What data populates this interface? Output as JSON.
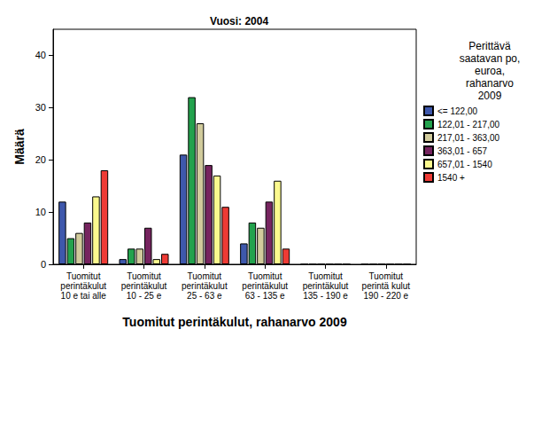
{
  "chart_data": {
    "type": "bar",
    "title": "Vuosi: 2004",
    "x_label": "Tuomitut perintäkulut, rahanarvo 2009",
    "y_label": "Määrä",
    "legend_title": "Perittävä\nsaatavan po,\neuroa,\nrahanarvo\n2009",
    "categories": [
      "Tuomitut\nperintäkulut\n10 e tai alle",
      "Tuomitut\nperintäkulut\n10 - 25 e",
      "Tuomitut\nperintäkulut\n25 - 63 e",
      "Tuomitut\nperintäkulut\n63 - 135 e",
      "Tuomitut\nperintäkulut\n135 - 190 e",
      "Tuomitut\nperintä kulut\n190 - 220 e"
    ],
    "series": [
      {
        "name": "<= 122,00",
        "color": "#3e58ac",
        "values": [
          12,
          1,
          21,
          4,
          0,
          0
        ]
      },
      {
        "name": "122,01 - 217,00",
        "color": "#23a24d",
        "values": [
          5,
          3,
          32,
          8,
          0,
          0
        ]
      },
      {
        "name": "217,01 - 363,00",
        "color": "#d1cb9c",
        "values": [
          6,
          3,
          27,
          7,
          0,
          0
        ]
      },
      {
        "name": "363,01 - 657",
        "color": "#76245f",
        "values": [
          8,
          7,
          19,
          12,
          0,
          0
        ]
      },
      {
        "name": "657,01 - 1540",
        "color": "#fbf98e",
        "values": [
          13,
          1,
          17,
          16,
          0,
          0
        ]
      },
      {
        "name": "1540 +",
        "color": "#ee3b35",
        "values": [
          18,
          2,
          11,
          3,
          0,
          0
        ]
      }
    ],
    "ylim": [
      0,
      45
    ],
    "yticks": [
      0,
      10,
      20,
      30,
      40
    ],
    "legend": "right",
    "grid": false
  }
}
